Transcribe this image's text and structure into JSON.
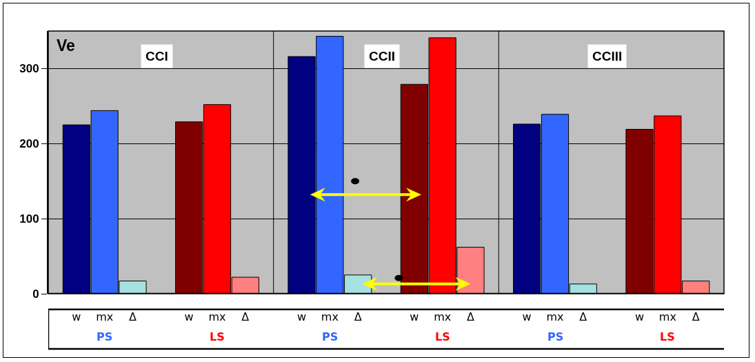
{
  "chart_data": {
    "type": "bar",
    "ylabel": "Ve",
    "categories": [
      "w",
      "mx",
      "Δ",
      "w",
      "mx",
      "Δ",
      "w",
      "mx",
      "Δ",
      "w",
      "mx",
      "Δ",
      "w",
      "mx",
      "Δ",
      "w",
      "mx",
      "Δ"
    ],
    "values": [
      225,
      244,
      17,
      229,
      252,
      22,
      316,
      343,
      25,
      279,
      341,
      62,
      226,
      239,
      13,
      219,
      237,
      17
    ],
    "colors": [
      "#000080",
      "#3366ff",
      "#a6e0e0",
      "#800000",
      "#ff0000",
      "#ff8080",
      "#000080",
      "#3366ff",
      "#a6e0e0",
      "#800000",
      "#ff0000",
      "#ff8080",
      "#000080",
      "#3366ff",
      "#a6e0e0",
      "#800000",
      "#ff0000",
      "#ff8080"
    ],
    "annotations": [
      "CCI",
      "CCII",
      "CCIII",
      "PS",
      "LS",
      "PS",
      "LS",
      "PS",
      "LS"
    ],
    "ylim": [
      0,
      350
    ],
    "yticks": [
      0,
      100,
      200,
      300
    ],
    "grid": "y"
  }
}
